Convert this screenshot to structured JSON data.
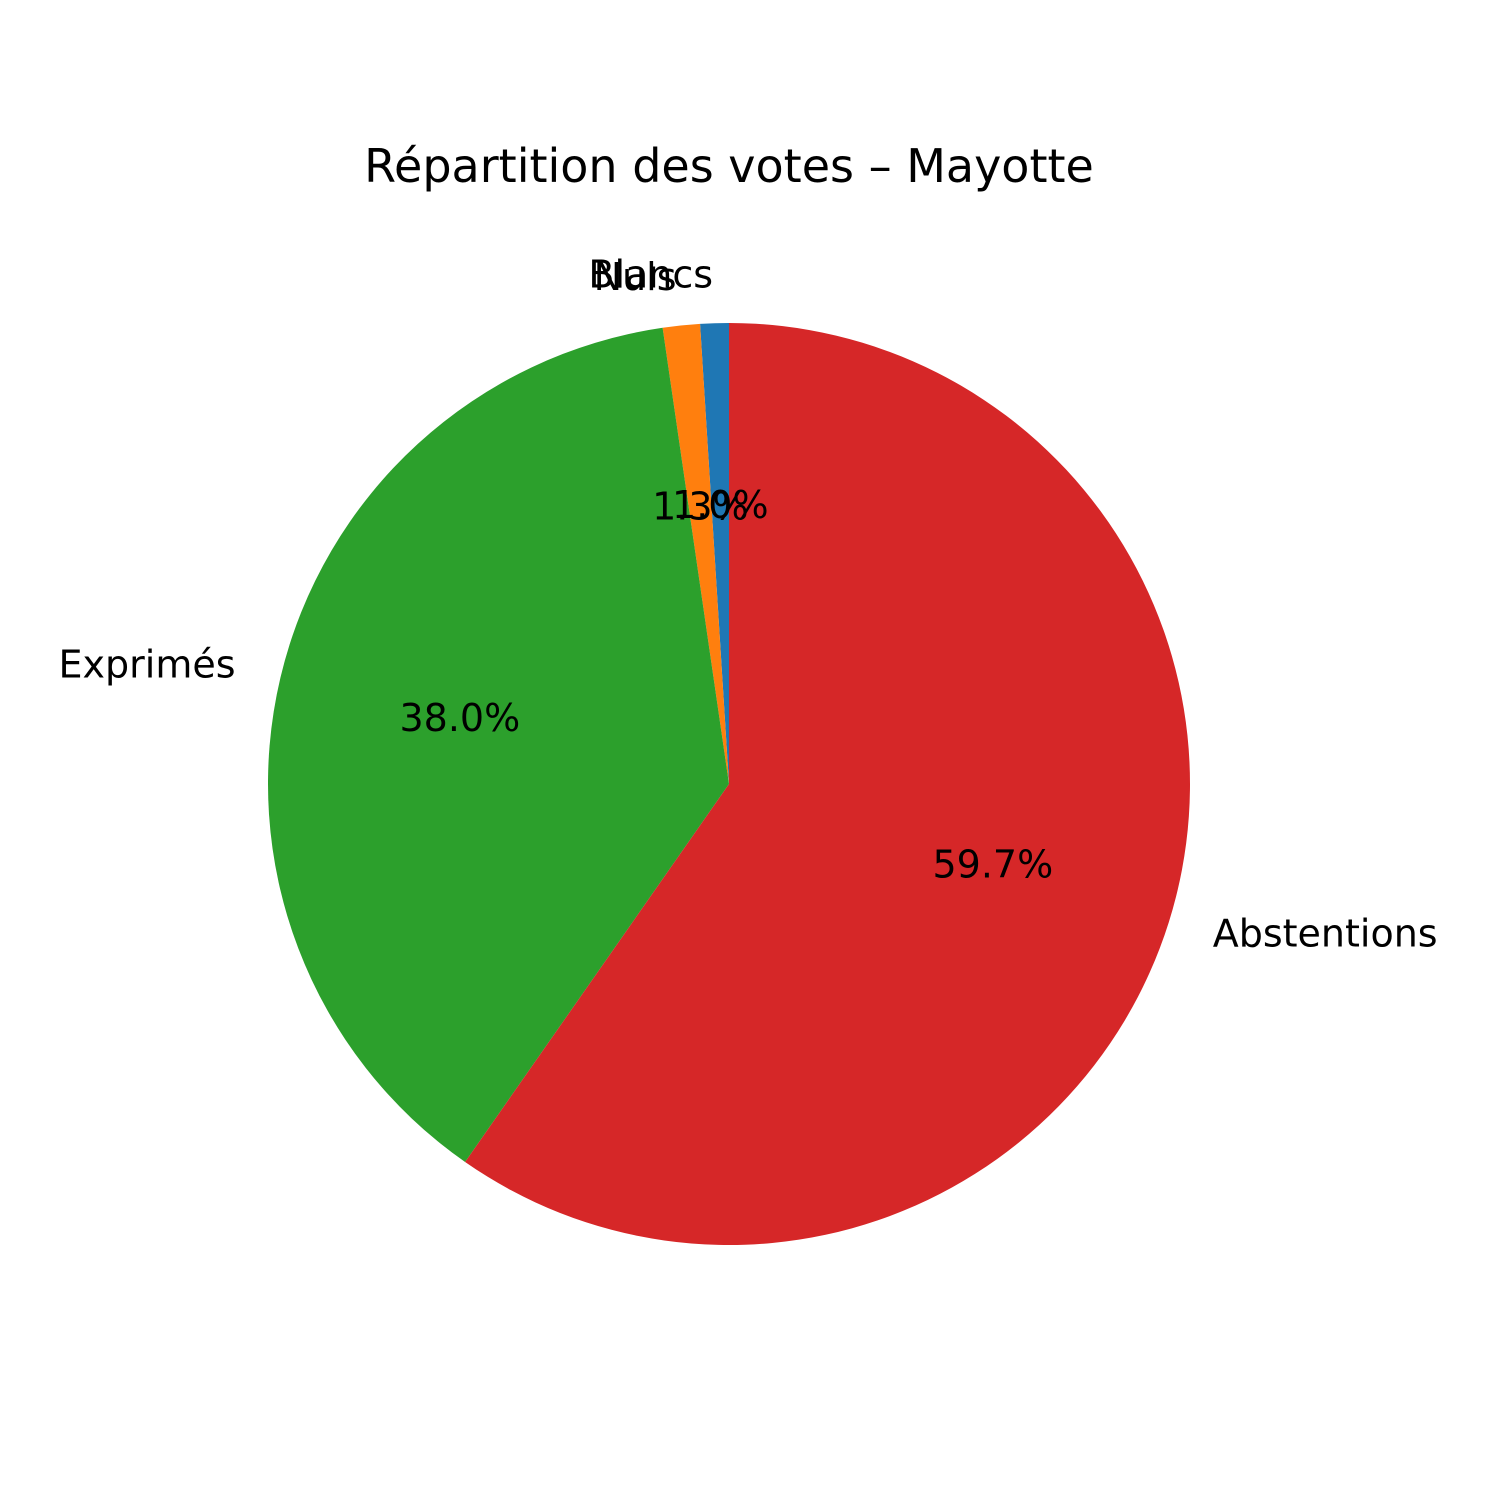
{
  "chart_data": {
    "type": "pie",
    "title": "Répartition des votes – Mayotte",
    "slices": [
      {
        "label": "Blancs",
        "value": 1.0,
        "pct_label": "1.0%",
        "color": "#1f77b4"
      },
      {
        "label": "Nuls",
        "value": 1.3,
        "pct_label": "1.3%",
        "color": "#ff7f0e"
      },
      {
        "label": "Exprimés",
        "value": 38.0,
        "pct_label": "38.0%",
        "color": "#2ca02c"
      },
      {
        "label": "Abstentions",
        "value": 59.7,
        "pct_label": "59.7%",
        "color": "#d62728"
      }
    ],
    "start_angle_deg": 90,
    "direction": "counterclockwise",
    "legend": "none"
  }
}
